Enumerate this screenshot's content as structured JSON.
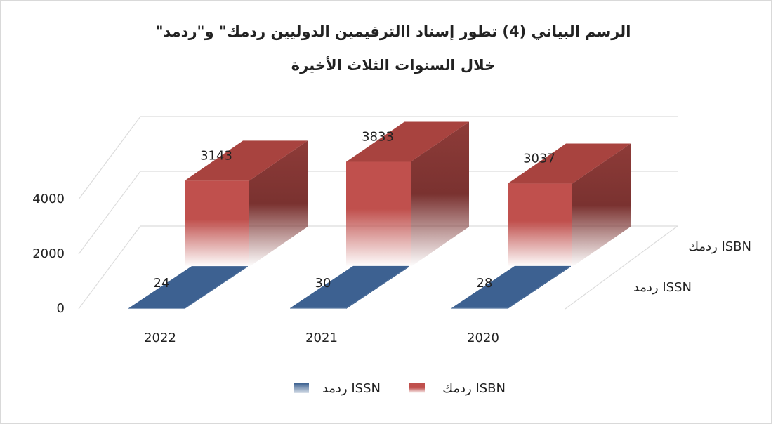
{
  "chart_data": {
    "type": "bar3d",
    "title": [
      "الرسم البياني (4) تطور إسناد االترقيمين الدوليين ردمك\" و\"ردمد\"",
      "خلال السنوات الثلاث الأخيرة"
    ],
    "categories": [
      "2022",
      "2021",
      "2020"
    ],
    "series": [
      {
        "name": "ردمد ISSN",
        "color": "#3d6191",
        "values": [
          24,
          30,
          28
        ]
      },
      {
        "name": "ردمك ISBN",
        "color": "#c0504d",
        "values": [
          3143,
          3833,
          3037
        ]
      }
    ],
    "ylim": [
      0,
      4000
    ],
    "yticks": [
      0,
      2000,
      4000
    ],
    "grid": true
  }
}
